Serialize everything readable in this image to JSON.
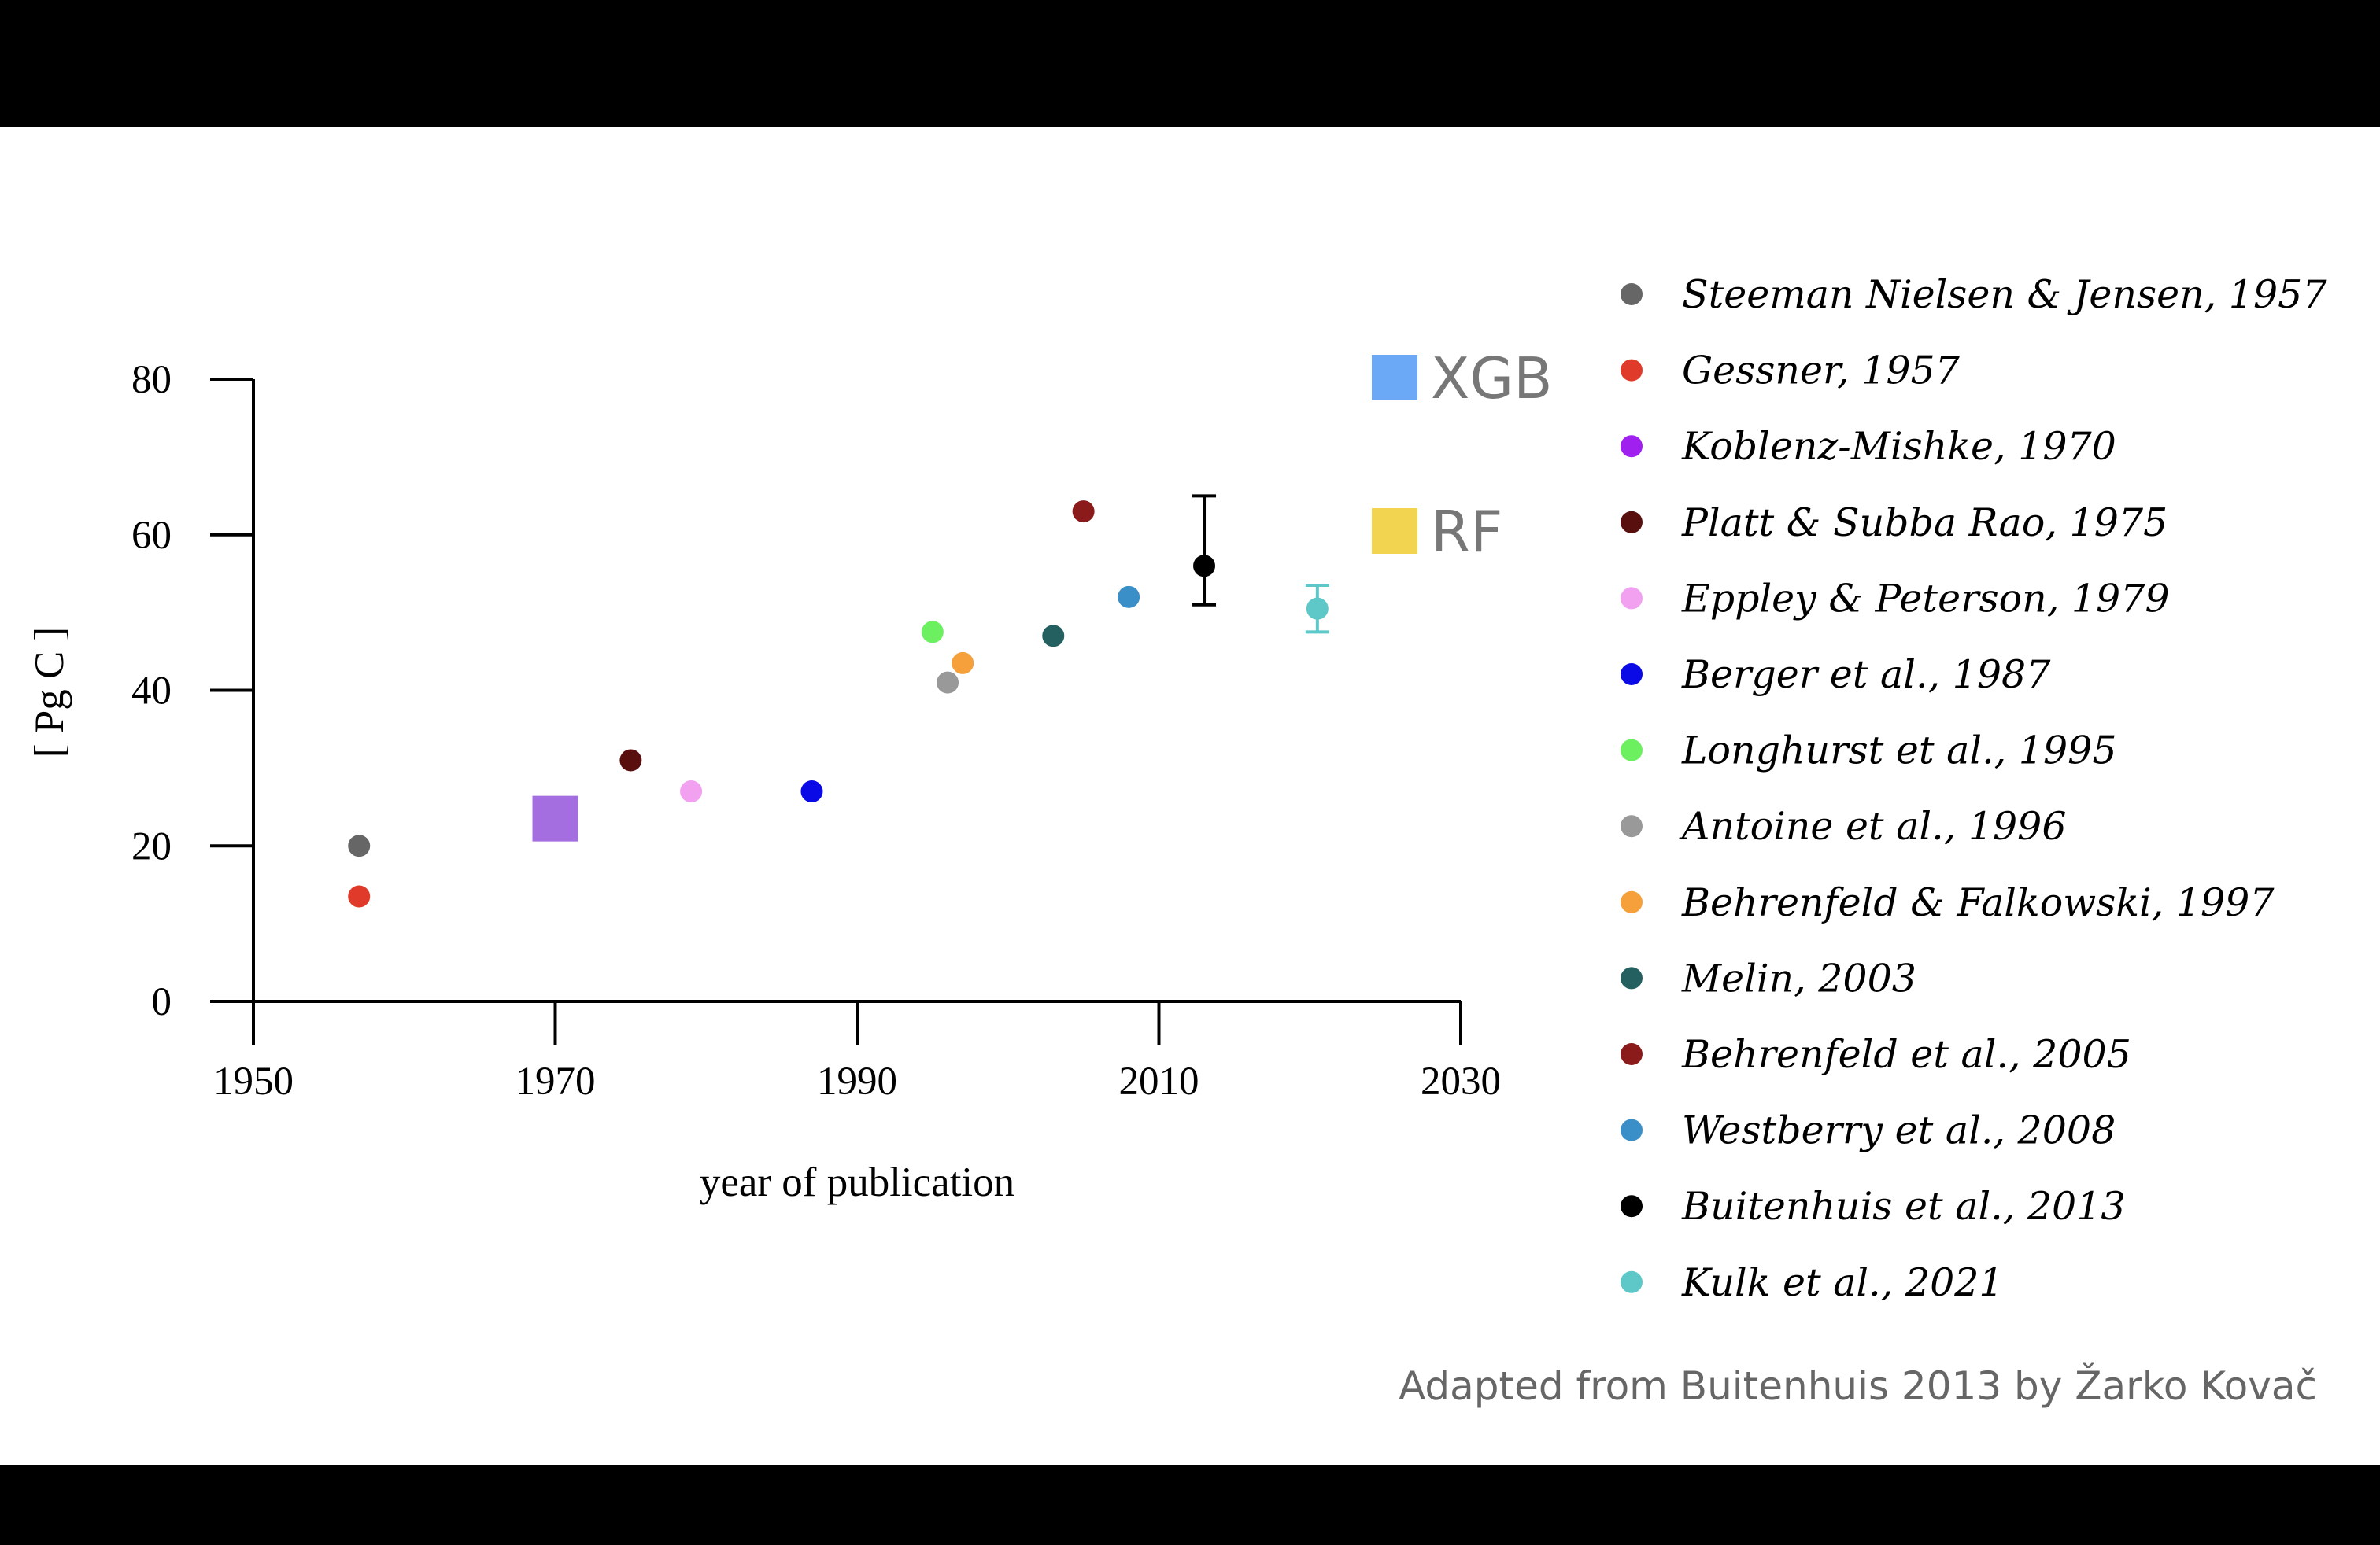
{
  "chart_data": {
    "type": "scatter",
    "title": "",
    "xlabel": "year of publication",
    "ylabel": "[ Pg C ]",
    "xlim": [
      1950,
      2030
    ],
    "ylim": [
      0,
      80
    ],
    "xticks": [
      1950,
      1970,
      1990,
      2010,
      2030
    ],
    "yticks": [
      0,
      20,
      40,
      60,
      80
    ],
    "grid": false,
    "legend_position": "right",
    "series": [
      {
        "name": "Steeman Nielsen & Jensen, 1957",
        "color": "#666666",
        "x": 1957,
        "y": 20
      },
      {
        "name": "Gessner, 1957",
        "color": "#e03a2a",
        "x": 1957,
        "y": 13.5
      },
      {
        "name": "Koblenz-Mishke, 1970",
        "color": "#a020f0",
        "x": null,
        "y": null
      },
      {
        "name": "Platt & Subba Rao, 1975",
        "color": "#5a0f0f",
        "x": 1975,
        "y": 31
      },
      {
        "name": "Eppley & Peterson, 1979",
        "color": "#f2a0f0",
        "x": 1979,
        "y": 27
      },
      {
        "name": "Berger et al., 1987",
        "color": "#0a0ae6",
        "x": 1987,
        "y": 27
      },
      {
        "name": "Longhurst et al., 1995",
        "color": "#6cf060",
        "x": 1995,
        "y": 47.5
      },
      {
        "name": "Antoine et al., 1996",
        "color": "#999999",
        "x": 1996,
        "y": 41
      },
      {
        "name": "Behrenfeld & Falkowski, 1997",
        "color": "#f5a03a",
        "x": 1997,
        "y": 43.5
      },
      {
        "name": "Melin, 2003",
        "color": "#256060",
        "x": 2003,
        "y": 47
      },
      {
        "name": "Behrenfeld et al., 2005",
        "color": "#8b1a1a",
        "x": 2005,
        "y": 63
      },
      {
        "name": "Westberry et al., 2008",
        "color": "#3a8fc8",
        "x": 2008,
        "y": 52
      },
      {
        "name": "Buitenhuis et al., 2013",
        "color": "#000000",
        "x": 2013,
        "y": 56,
        "err_low": 51,
        "err_high": 65
      },
      {
        "name": "Kulk et al., 2021",
        "color": "#5ec8c8",
        "x": 2020.5,
        "y": 50.5,
        "err_low": 47.5,
        "err_high": 53.5
      }
    ],
    "square_markers": [
      {
        "name": "",
        "color": "#a56ee0",
        "x": 1970,
        "y": 23.5
      }
    ],
    "model_markers": [
      {
        "label": "XGB",
        "color": "#6ba8f5"
      },
      {
        "label": "RF",
        "color": "#f2d450"
      }
    ]
  },
  "credit": "Adapted from Buitenhuis 2013 by Žarko Kovač"
}
